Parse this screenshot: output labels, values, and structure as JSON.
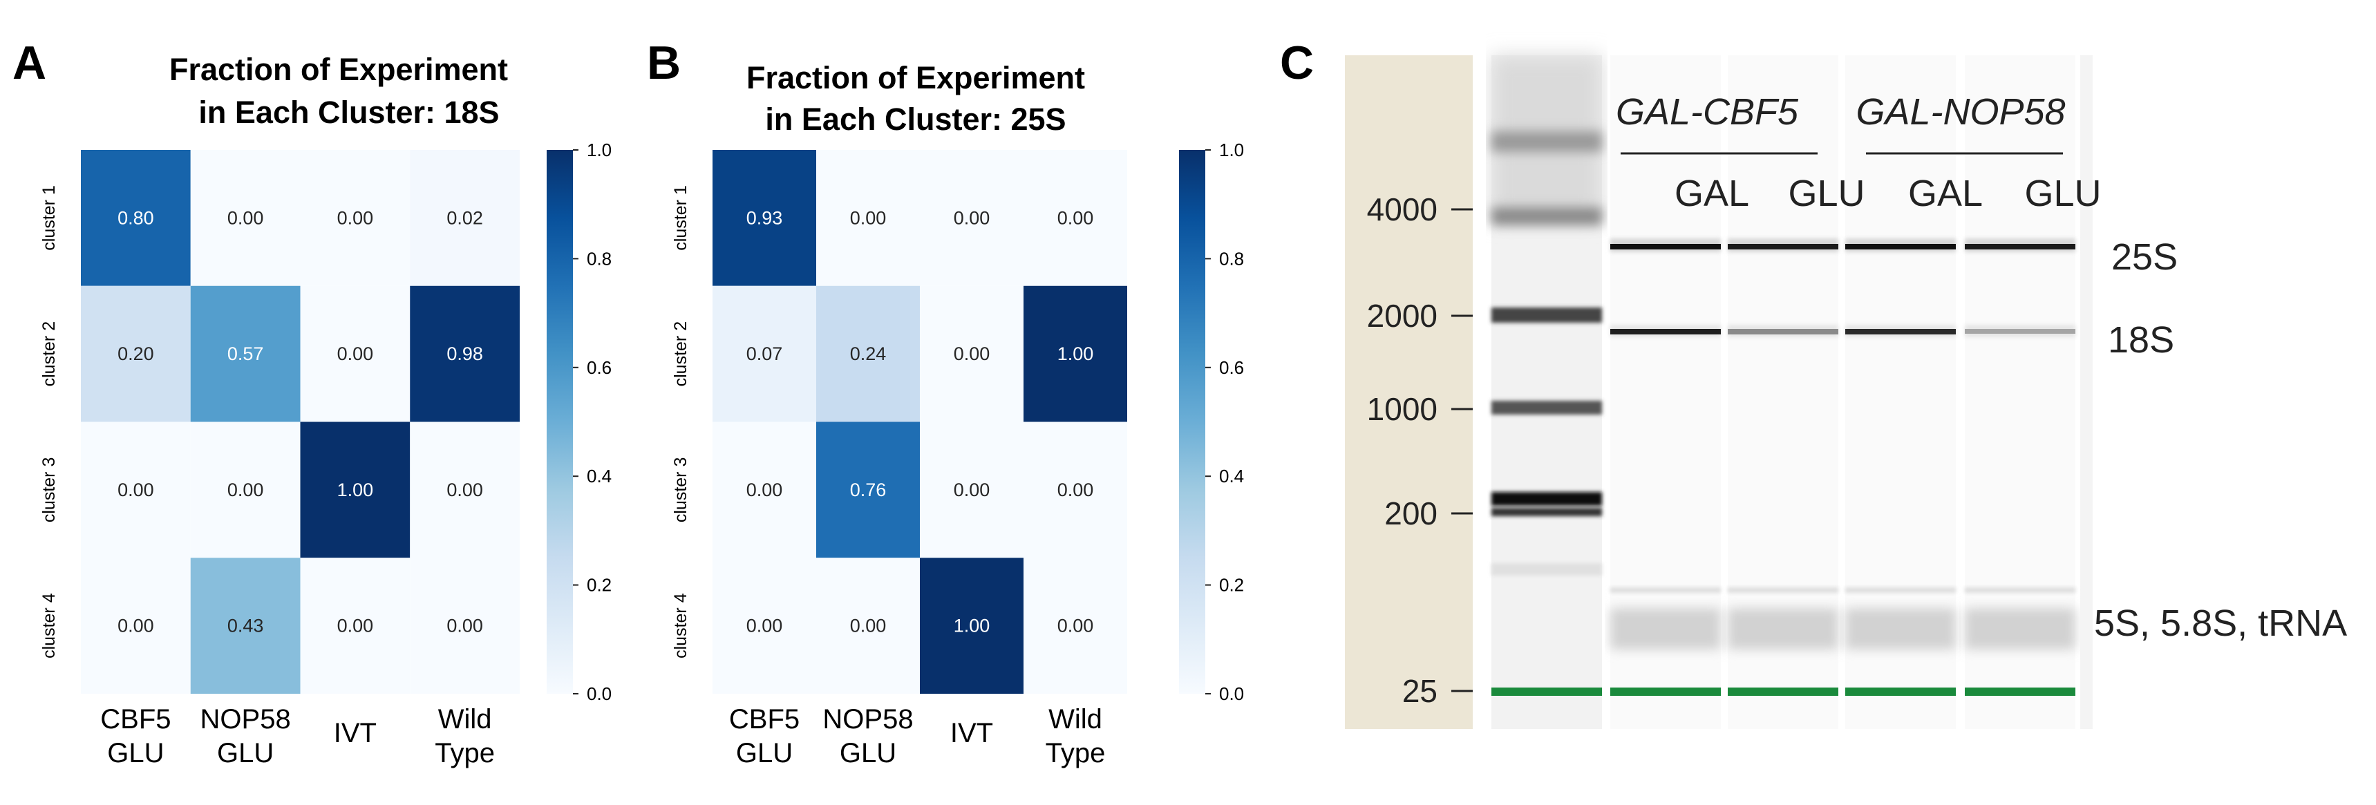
{
  "panels": {
    "a": {
      "letter": "A",
      "title_line1": "Fraction of Experiment",
      "title_line2": "in Each Cluster: 18S"
    },
    "b": {
      "letter": "B",
      "title_line1": "Fraction of Experiment",
      "title_line2": "in Each Cluster: 25S"
    },
    "c": {
      "letter": "C"
    }
  },
  "chart_data": [
    {
      "type": "heatmap",
      "title": "Fraction of Experiment in Each Cluster: 18S",
      "x_categories": [
        [
          "CBF5",
          "GLU"
        ],
        [
          "NOP58",
          "GLU"
        ],
        [
          "IVT"
        ],
        [
          "Wild",
          "Type"
        ]
      ],
      "y_categories": [
        "cluster 1",
        "cluster 2",
        "cluster 3",
        "cluster 4"
      ],
      "values": [
        [
          0.8,
          0.0,
          0.0,
          0.02
        ],
        [
          0.2,
          0.57,
          0.0,
          0.98
        ],
        [
          0.0,
          0.0,
          1.0,
          0.0
        ],
        [
          0.0,
          0.43,
          0.0,
          0.0
        ]
      ],
      "colorbar_range": [
        0.0,
        1.0
      ],
      "colorbar_ticks": [
        "0.0",
        "0.2",
        "0.4",
        "0.6",
        "0.8",
        "1.0"
      ],
      "colormap": "Blues"
    },
    {
      "type": "heatmap",
      "title": "Fraction of Experiment in Each Cluster: 25S",
      "x_categories": [
        [
          "CBF5",
          "GLU"
        ],
        [
          "NOP58",
          "GLU"
        ],
        [
          "IVT"
        ],
        [
          "Wild",
          "Type"
        ]
      ],
      "y_categories": [
        "cluster 1",
        "cluster 2",
        "cluster 3",
        "cluster 4"
      ],
      "values": [
        [
          0.93,
          0.0,
          0.0,
          0.0
        ],
        [
          0.07,
          0.24,
          0.0,
          1.0
        ],
        [
          0.0,
          0.76,
          0.0,
          0.0
        ],
        [
          0.0,
          0.0,
          1.0,
          0.0
        ]
      ],
      "colorbar_range": [
        0.0,
        1.0
      ],
      "colorbar_ticks": [
        "0.0",
        "0.2",
        "0.4",
        "0.6",
        "0.8",
        "1.0"
      ],
      "colormap": "Blues"
    }
  ],
  "gel": {
    "ladder_ticks": [
      "4000",
      "2000",
      "1000",
      "200",
      "25"
    ],
    "groups": [
      "GAL-CBF5",
      "GAL-NOP58"
    ],
    "lanes": [
      "GAL",
      "GLU",
      "GAL",
      "GLU"
    ],
    "band_labels": [
      "25S",
      "18S",
      "5S, 5.8S, tRNA"
    ],
    "marker_color": "#1a8a3c"
  }
}
